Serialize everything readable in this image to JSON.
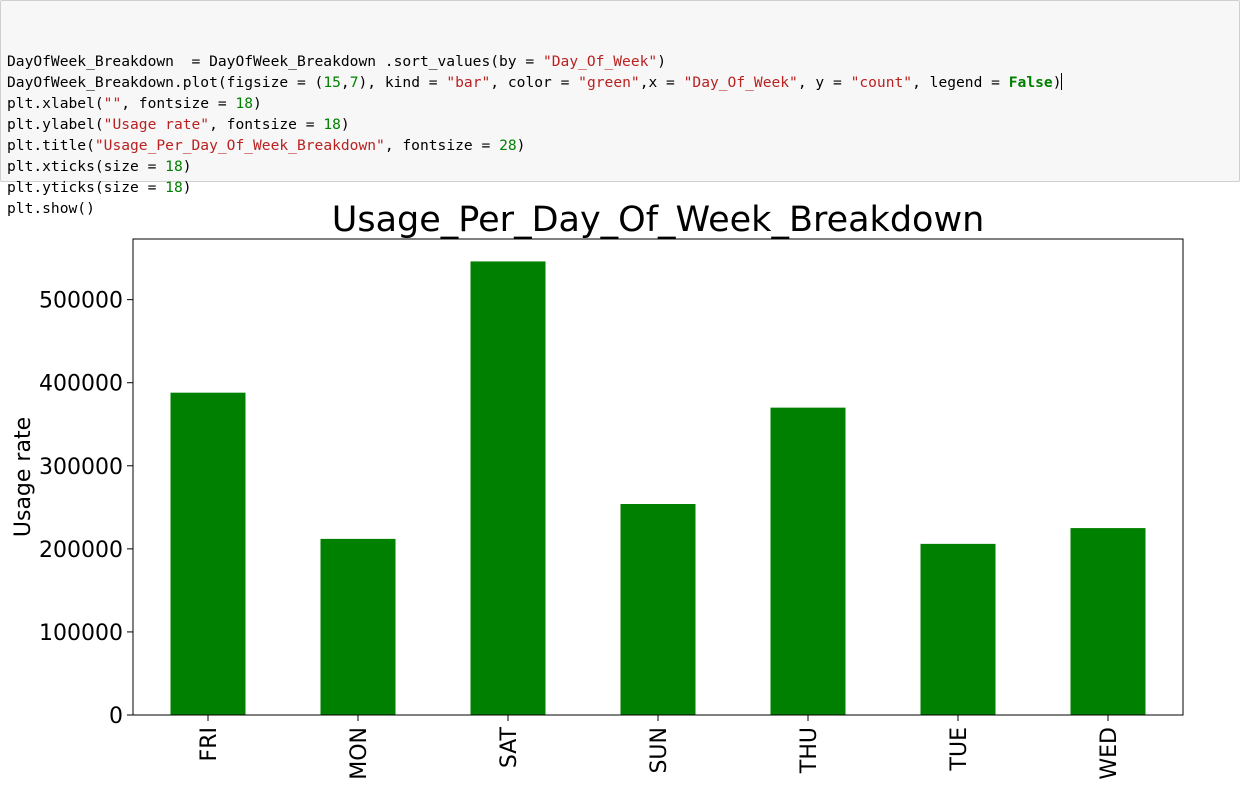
{
  "code": {
    "lines": [
      [
        {
          "t": "DayOfWeek_Breakdown  = DayOfWeek_Breakdown .sort_values(by = ",
          "c": ""
        },
        {
          "t": "\"Day_Of_Week\"",
          "c": "str"
        },
        {
          "t": ")",
          "c": ""
        }
      ],
      [
        {
          "t": "DayOfWeek_Breakdown.plot(figsize = (",
          "c": ""
        },
        {
          "t": "15",
          "c": "num"
        },
        {
          "t": ",",
          "c": ""
        },
        {
          "t": "7",
          "c": "num"
        },
        {
          "t": "), kind = ",
          "c": ""
        },
        {
          "t": "\"bar\"",
          "c": "str"
        },
        {
          "t": ", color = ",
          "c": ""
        },
        {
          "t": "\"green\"",
          "c": "str"
        },
        {
          "t": ",x = ",
          "c": ""
        },
        {
          "t": "\"Day_Of_Week\"",
          "c": "str"
        },
        {
          "t": ", y = ",
          "c": ""
        },
        {
          "t": "\"count\"",
          "c": "str"
        },
        {
          "t": ", legend = ",
          "c": ""
        },
        {
          "t": "False",
          "c": "kw"
        },
        {
          "t": ")",
          "c": ""
        }
      ],
      [
        {
          "t": "plt.xlabel(",
          "c": ""
        },
        {
          "t": "\"\"",
          "c": "str"
        },
        {
          "t": ", fontsize = ",
          "c": ""
        },
        {
          "t": "18",
          "c": "num"
        },
        {
          "t": ")",
          "c": ""
        }
      ],
      [
        {
          "t": "plt.ylabel(",
          "c": ""
        },
        {
          "t": "\"Usage rate\"",
          "c": "str"
        },
        {
          "t": ", fontsize = ",
          "c": ""
        },
        {
          "t": "18",
          "c": "num"
        },
        {
          "t": ")",
          "c": ""
        }
      ],
      [
        {
          "t": "plt.title(",
          "c": ""
        },
        {
          "t": "\"Usage_Per_Day_Of_Week_Breakdown\"",
          "c": "str"
        },
        {
          "t": ", fontsize = ",
          "c": ""
        },
        {
          "t": "28",
          "c": "num"
        },
        {
          "t": ")",
          "c": ""
        }
      ],
      [
        {
          "t": "plt.xticks(size = ",
          "c": ""
        },
        {
          "t": "18",
          "c": "num"
        },
        {
          "t": ")",
          "c": ""
        }
      ],
      [
        {
          "t": "plt.yticks(size = ",
          "c": ""
        },
        {
          "t": "18",
          "c": "num"
        },
        {
          "t": ")",
          "c": ""
        }
      ],
      [
        {
          "t": "plt.show()",
          "c": ""
        }
      ]
    ]
  },
  "chart_data": {
    "type": "bar",
    "title": "Usage_Per_Day_Of_Week_Breakdown",
    "xlabel": "",
    "ylabel": "Usage rate",
    "categories": [
      "FRI",
      "MON",
      "SAT",
      "SUN",
      "THU",
      "TUE",
      "WED"
    ],
    "values": [
      388000,
      212000,
      546000,
      254000,
      370000,
      206000,
      225000
    ],
    "ylim": [
      0,
      573000
    ],
    "yticks": [
      0,
      100000,
      200000,
      300000,
      400000,
      500000
    ],
    "ytick_labels": [
      "0",
      "100000",
      "200000",
      "300000",
      "400000",
      "500000"
    ],
    "bar_color": "#008000",
    "legend": false,
    "grid": false
  }
}
